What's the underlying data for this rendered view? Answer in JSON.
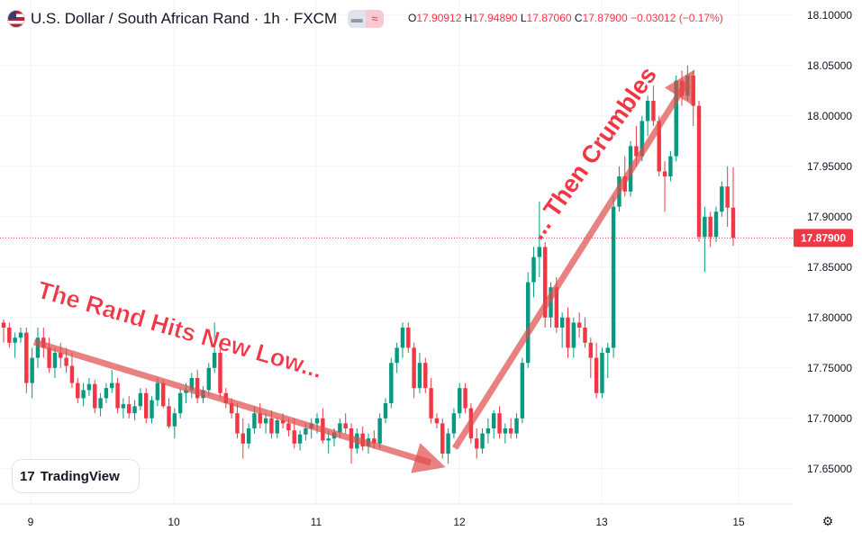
{
  "header": {
    "title": "U.S. Dollar / South African Rand · 1h · FXCM",
    "open_label": "O",
    "open": "17.90912",
    "high_label": "H",
    "high": "17.94890",
    "low_label": "L",
    "low": "17.87060",
    "close_label": "C",
    "close": "17.87900",
    "change": "−0.03012 (−0.17%)",
    "wave_icon": "≈"
  },
  "brand": {
    "logo_mark": "17",
    "name": "TradingView"
  },
  "colors": {
    "up": "#089981",
    "down": "#f23645",
    "arrow": "#e04b4b",
    "annotation": "#f23645",
    "grid": "#f0f3fa"
  },
  "chart_data": {
    "type": "candlestick",
    "symbol": "USD/ZAR",
    "interval": "1h",
    "ylim": [
      17.615,
      18.115
    ],
    "y_ticks": [
      "17.65000",
      "17.70000",
      "17.75000",
      "17.80000",
      "17.85000",
      "17.90000",
      "17.95000",
      "18.00000",
      "18.05000",
      "18.10000"
    ],
    "x_ticks": [
      "9",
      "10",
      "11",
      "12",
      "13",
      "15"
    ],
    "last_price": "17.87900",
    "annotations": [
      "The Rand Hits New Low...",
      "... Then Crumbles"
    ],
    "ohlc": [
      [
        17.795,
        17.798,
        17.775,
        17.79
      ],
      [
        17.79,
        17.795,
        17.77,
        17.775
      ],
      [
        17.775,
        17.785,
        17.76,
        17.78
      ],
      [
        17.78,
        17.79,
        17.775,
        17.785
      ],
      [
        17.785,
        17.79,
        17.725,
        17.735
      ],
      [
        17.735,
        17.77,
        17.72,
        17.76
      ],
      [
        17.76,
        17.79,
        17.75,
        17.78
      ],
      [
        17.78,
        17.79,
        17.76,
        17.77
      ],
      [
        17.77,
        17.78,
        17.745,
        17.75
      ],
      [
        17.75,
        17.77,
        17.74,
        17.765
      ],
      [
        17.765,
        17.775,
        17.75,
        17.76
      ],
      [
        17.76,
        17.77,
        17.745,
        17.752
      ],
      [
        17.752,
        17.765,
        17.73,
        17.735
      ],
      [
        17.735,
        17.74,
        17.715,
        17.72
      ],
      [
        17.72,
        17.735,
        17.712,
        17.728
      ],
      [
        17.728,
        17.74,
        17.722,
        17.734
      ],
      [
        17.734,
        17.738,
        17.705,
        17.71
      ],
      [
        17.71,
        17.725,
        17.702,
        17.72
      ],
      [
        17.72,
        17.735,
        17.715,
        17.73
      ],
      [
        17.73,
        17.748,
        17.725,
        17.735
      ],
      [
        17.735,
        17.74,
        17.705,
        17.71
      ],
      [
        17.71,
        17.72,
        17.7,
        17.714
      ],
      [
        17.714,
        17.722,
        17.7,
        17.705
      ],
      [
        17.705,
        17.718,
        17.698,
        17.712
      ],
      [
        17.712,
        17.73,
        17.708,
        17.725
      ],
      [
        17.725,
        17.73,
        17.695,
        17.7
      ],
      [
        17.7,
        17.722,
        17.695,
        17.718
      ],
      [
        17.718,
        17.74,
        17.712,
        17.735
      ],
      [
        17.735,
        17.738,
        17.71,
        17.712
      ],
      [
        17.712,
        17.72,
        17.69,
        17.692
      ],
      [
        17.692,
        17.71,
        17.68,
        17.705
      ],
      [
        17.705,
        17.73,
        17.7,
        17.725
      ],
      [
        17.725,
        17.735,
        17.715,
        17.728
      ],
      [
        17.728,
        17.745,
        17.72,
        17.74
      ],
      [
        17.74,
        17.748,
        17.715,
        17.72
      ],
      [
        17.72,
        17.732,
        17.715,
        17.728
      ],
      [
        17.728,
        17.755,
        17.722,
        17.75
      ],
      [
        17.75,
        17.795,
        17.745,
        17.765
      ],
      [
        17.765,
        17.77,
        17.72,
        17.725
      ],
      [
        17.725,
        17.73,
        17.71,
        17.715
      ],
      [
        17.715,
        17.72,
        17.7,
        17.705
      ],
      [
        17.705,
        17.715,
        17.68,
        17.685
      ],
      [
        17.685,
        17.7,
        17.66,
        17.675
      ],
      [
        17.675,
        17.695,
        17.67,
        17.69
      ],
      [
        17.69,
        17.712,
        17.685,
        17.705
      ],
      [
        17.705,
        17.715,
        17.69,
        17.695
      ],
      [
        17.695,
        17.705,
        17.685,
        17.7
      ],
      [
        17.7,
        17.708,
        17.68,
        17.685
      ],
      [
        17.685,
        17.7,
        17.68,
        17.698
      ],
      [
        17.698,
        17.705,
        17.69,
        17.695
      ],
      [
        17.695,
        17.7,
        17.682,
        17.688
      ],
      [
        17.688,
        17.7,
        17.67,
        17.675
      ],
      [
        17.675,
        17.688,
        17.668,
        17.684
      ],
      [
        17.684,
        17.695,
        17.678,
        17.69
      ],
      [
        17.69,
        17.7,
        17.68,
        17.695
      ],
      [
        17.695,
        17.705,
        17.685,
        17.7
      ],
      [
        17.7,
        17.71,
        17.675,
        17.678
      ],
      [
        17.678,
        17.688,
        17.665,
        17.68
      ],
      [
        17.68,
        17.69,
        17.672,
        17.686
      ],
      [
        17.686,
        17.7,
        17.68,
        17.695
      ],
      [
        17.695,
        17.705,
        17.685,
        17.69
      ],
      [
        17.69,
        17.695,
        17.655,
        17.67
      ],
      [
        17.67,
        17.69,
        17.665,
        17.685
      ],
      [
        17.685,
        17.692,
        17.668,
        17.672
      ],
      [
        17.672,
        17.685,
        17.665,
        17.68
      ],
      [
        17.68,
        17.688,
        17.67,
        17.675
      ],
      [
        17.675,
        17.705,
        17.67,
        17.7
      ],
      [
        17.7,
        17.72,
        17.695,
        17.715
      ],
      [
        17.715,
        17.76,
        17.71,
        17.755
      ],
      [
        17.755,
        17.775,
        17.745,
        17.77
      ],
      [
        17.77,
        17.795,
        17.76,
        17.79
      ],
      [
        17.79,
        17.795,
        17.765,
        17.77
      ],
      [
        17.77,
        17.775,
        17.72,
        17.73
      ],
      [
        17.73,
        17.765,
        17.725,
        17.755
      ],
      [
        17.755,
        17.76,
        17.725,
        17.73
      ],
      [
        17.73,
        17.74,
        17.695,
        17.7
      ],
      [
        17.7,
        17.705,
        17.69,
        17.695
      ],
      [
        17.695,
        17.7,
        17.66,
        17.665
      ],
      [
        17.665,
        17.69,
        17.655,
        17.685
      ],
      [
        17.685,
        17.71,
        17.68,
        17.705
      ],
      [
        17.705,
        17.735,
        17.7,
        17.73
      ],
      [
        17.73,
        17.735,
        17.705,
        17.71
      ],
      [
        17.71,
        17.715,
        17.675,
        17.68
      ],
      [
        17.68,
        17.69,
        17.66,
        17.67
      ],
      [
        17.67,
        17.69,
        17.665,
        17.685
      ],
      [
        17.685,
        17.7,
        17.675,
        17.69
      ],
      [
        17.69,
        17.708,
        17.68,
        17.705
      ],
      [
        17.705,
        17.712,
        17.68,
        17.685
      ],
      [
        17.685,
        17.695,
        17.675,
        17.69
      ],
      [
        17.69,
        17.7,
        17.68,
        17.685
      ],
      [
        17.685,
        17.705,
        17.68,
        17.7
      ],
      [
        17.7,
        17.76,
        17.695,
        17.755
      ],
      [
        17.755,
        17.845,
        17.75,
        17.835
      ],
      [
        17.835,
        17.87,
        17.82,
        17.86
      ],
      [
        17.86,
        17.915,
        17.84,
        17.87
      ],
      [
        17.87,
        17.875,
        17.79,
        17.8
      ],
      [
        17.8,
        17.835,
        17.79,
        17.83
      ],
      [
        17.83,
        17.84,
        17.785,
        17.79
      ],
      [
        17.79,
        17.805,
        17.77,
        17.8
      ],
      [
        17.8,
        17.81,
        17.76,
        17.77
      ],
      [
        17.77,
        17.8,
        17.76,
        17.795
      ],
      [
        17.795,
        17.805,
        17.78,
        17.79
      ],
      [
        17.79,
        17.8,
        17.77,
        17.775
      ],
      [
        17.775,
        17.78,
        17.74,
        17.76
      ],
      [
        17.76,
        17.775,
        17.72,
        17.725
      ],
      [
        17.725,
        17.77,
        17.72,
        17.765
      ],
      [
        17.765,
        17.775,
        17.74,
        17.77
      ],
      [
        17.77,
        17.92,
        17.76,
        17.91
      ],
      [
        17.91,
        17.95,
        17.905,
        17.94
      ],
      [
        17.94,
        17.96,
        17.92,
        17.925
      ],
      [
        17.925,
        17.975,
        17.92,
        17.97
      ],
      [
        17.97,
        17.99,
        17.95,
        17.96
      ],
      [
        17.96,
        18.0,
        17.955,
        17.995
      ],
      [
        17.995,
        18.02,
        17.98,
        18.015
      ],
      [
        18.015,
        18.03,
        17.99,
        17.995
      ],
      [
        17.995,
        18.0,
        17.94,
        17.945
      ],
      [
        17.945,
        17.955,
        17.905,
        17.94
      ],
      [
        17.94,
        17.965,
        17.935,
        17.96
      ],
      [
        17.96,
        18.04,
        17.955,
        18.035
      ],
      [
        18.035,
        18.045,
        18.01,
        18.02
      ],
      [
        18.02,
        18.05,
        18.015,
        18.04
      ],
      [
        18.04,
        18.045,
        17.99,
        18.01
      ],
      [
        18.01,
        18.015,
        17.875,
        17.88
      ],
      [
        17.88,
        17.91,
        17.845,
        17.9
      ],
      [
        17.9,
        17.905,
        17.87,
        17.88
      ],
      [
        17.88,
        17.91,
        17.875,
        17.905
      ],
      [
        17.905,
        17.935,
        17.9,
        17.93
      ],
      [
        17.93,
        17.95,
        17.89,
        17.909
      ],
      [
        17.909,
        17.949,
        17.871,
        17.879
      ]
    ]
  }
}
